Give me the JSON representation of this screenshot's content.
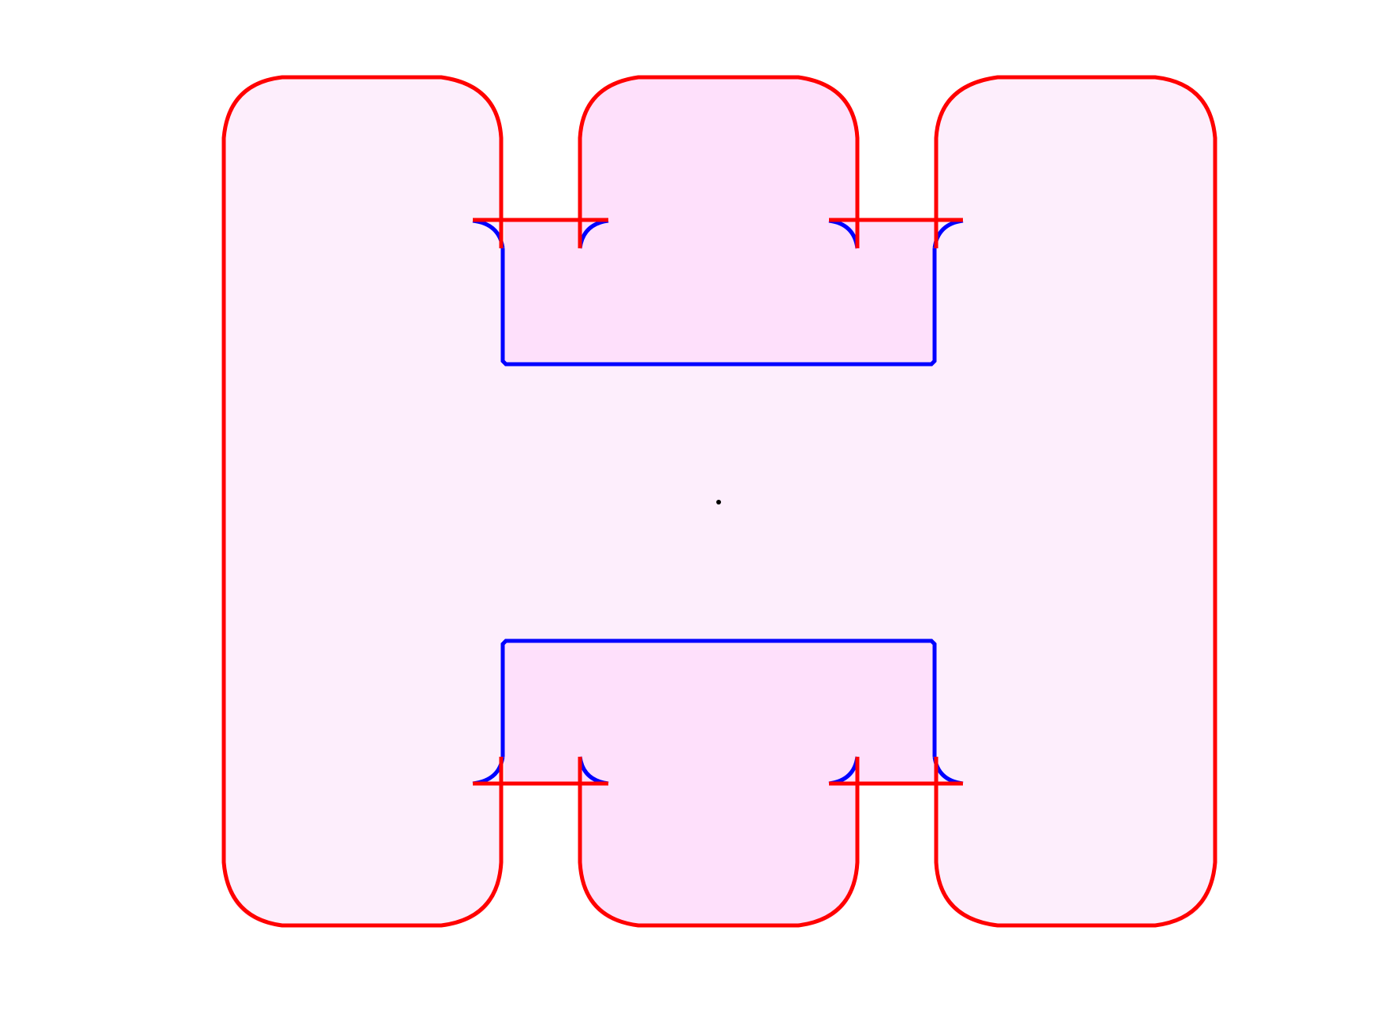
{
  "diagram": {
    "description_colors": {
      "background": "#ffffff",
      "outer_fill": "#fdeefc",
      "inner_fill": "#fee0fb",
      "red_stroke": "#ff0000",
      "blue_stroke": "#0000ff",
      "center_dot": "#000000"
    },
    "elements": [
      "outer-left-pillar",
      "outer-right-pillar",
      "center-top-block",
      "center-bottom-block",
      "top-channel-outline",
      "bottom-channel-outline",
      "center-marker"
    ]
  }
}
